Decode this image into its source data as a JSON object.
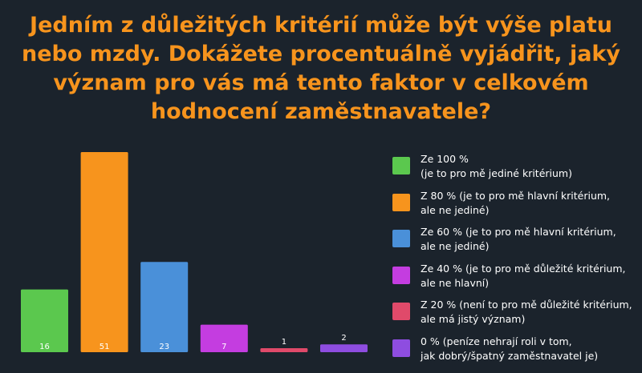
{
  "chart_data": {
    "type": "bar",
    "title": "Jedním z důležitých kritérií může být výše platu nebo mzdy. Dokážete procentuálně vyjádřit, jaký význam pro vás má tento faktor v celkovém hodnocení zaměstnavatele?",
    "categories": [
      "Ze 100 %\n(je to pro mě jediné kritérium)",
      "Z 80 %  (je to pro mě hlavní kritérium,\nale ne jediné)",
      "Ze 60 % (je to pro mě hlavní kritérium,\nale ne jediné)",
      "Ze 40 % (je to pro mě důležité kritérium,\nale ne hlavní)",
      "Z 20 % (není to pro mě důležité kritérium,\nale má jistý význam)",
      "0 % (peníze nehrají roli v tom,\njak dobrý/špatný zaměstnavatel je)"
    ],
    "values": [
      16,
      51,
      23,
      7,
      1,
      2
    ],
    "colors": [
      "#5bc84e",
      "#f7941d",
      "#4a90d9",
      "#c43de0",
      "#e04a6a",
      "#8e4de0"
    ],
    "ylim": [
      0,
      51
    ],
    "legend_position": "right",
    "grid": false
  },
  "style": {
    "label_inside_color": "#ffffff",
    "label_outside_color": "#ffffff"
  }
}
